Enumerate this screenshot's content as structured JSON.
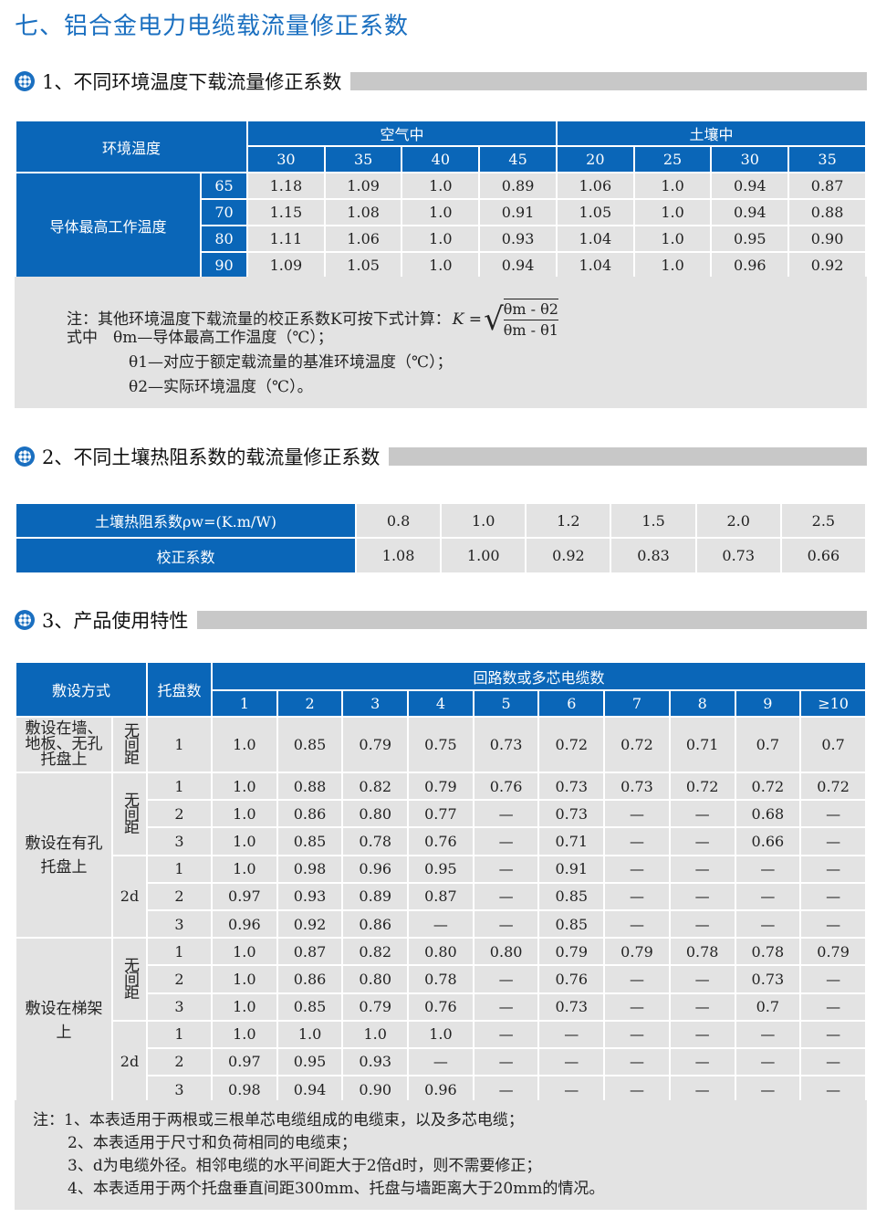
{
  "title": "七、铝合金电力电缆载流量修正系数",
  "colors": {
    "header_blue": "#0a66b8",
    "title_blue": "#1a6fc0",
    "cell_gray": "#e3e3e3"
  },
  "section1": {
    "heading": "1、不同环境温度下载流量修正系数",
    "env_temp": "环境温度",
    "air": "空气中",
    "soil": "土壤中",
    "conductor_max": "导体最高工作温度",
    "air_temps": [
      "30",
      "35",
      "40",
      "45"
    ],
    "soil_temps": [
      "20",
      "25",
      "30",
      "35"
    ],
    "rows": [
      {
        "t": "65",
        "v": [
          "1.18",
          "1.09",
          "1.0",
          "0.89",
          "1.06",
          "1.0",
          "0.94",
          "0.87"
        ]
      },
      {
        "t": "70",
        "v": [
          "1.15",
          "1.08",
          "1.0",
          "0.91",
          "1.05",
          "1.0",
          "0.94",
          "0.88"
        ]
      },
      {
        "t": "80",
        "v": [
          "1.11",
          "1.06",
          "1.0",
          "0.93",
          "1.04",
          "1.0",
          "0.95",
          "0.90"
        ]
      },
      {
        "t": "90",
        "v": [
          "1.09",
          "1.05",
          "1.0",
          "0.94",
          "1.04",
          "1.0",
          "0.96",
          "0.92"
        ]
      }
    ],
    "note": {
      "line1": "注：其他环境温度下载流量的校正系数K可按下式计算：",
      "formula_k": "K =",
      "formula_num": "θm - θ2",
      "formula_den": "θm - θ1",
      "line2": "式中　θm—导体最高工作温度（℃）；",
      "line3": "θ1—对应于额定载流量的基准环境温度（℃）；",
      "line4": "θ2—实际环境温度（℃）。"
    }
  },
  "section2": {
    "heading": "2、不同土壤热阻系数的载流量修正系数",
    "row1_label": "土壤热阻系数ρw=(K.m/W)",
    "row1": [
      "0.8",
      "1.0",
      "1.2",
      "1.5",
      "2.0",
      "2.5"
    ],
    "row2_label": "校正系数",
    "row2": [
      "1.08",
      "1.00",
      "0.92",
      "0.83",
      "0.73",
      "0.66"
    ]
  },
  "section3": {
    "heading": "3、产品使用特性",
    "h_method": "敷设方式",
    "h_trays": "托盘数",
    "h_circuits": "回路数或多芯电缆数",
    "cols": [
      "1",
      "2",
      "3",
      "4",
      "5",
      "6",
      "7",
      "8",
      "9",
      "≥10"
    ],
    "groups": [
      {
        "method": "敷设在墙、地板、无孔托盘上",
        "subs": [
          {
            "spacing": "无间距",
            "rows": [
              {
                "n": "1",
                "v": [
                  "1.0",
                  "0.85",
                  "0.79",
                  "0.75",
                  "0.73",
                  "0.72",
                  "0.72",
                  "0.71",
                  "0.7",
                  "0.7"
                ]
              }
            ]
          }
        ]
      },
      {
        "method": "敷设在有孔托盘上",
        "subs": [
          {
            "spacing": "无间距",
            "rows": [
              {
                "n": "1",
                "v": [
                  "1.0",
                  "0.88",
                  "0.82",
                  "0.79",
                  "0.76",
                  "0.73",
                  "0.73",
                  "0.72",
                  "0.72",
                  "0.72"
                ]
              },
              {
                "n": "2",
                "v": [
                  "1.0",
                  "0.86",
                  "0.80",
                  "0.77",
                  "—",
                  "0.73",
                  "—",
                  "—",
                  "0.68",
                  "—"
                ]
              },
              {
                "n": "3",
                "v": [
                  "1.0",
                  "0.85",
                  "0.78",
                  "0.76",
                  "—",
                  "0.71",
                  "—",
                  "—",
                  "0.66",
                  "—"
                ]
              }
            ]
          },
          {
            "spacing": "2d",
            "rows": [
              {
                "n": "1",
                "v": [
                  "1.0",
                  "0.98",
                  "0.96",
                  "0.95",
                  "—",
                  "0.91",
                  "—",
                  "—",
                  "—",
                  "—"
                ]
              },
              {
                "n": "2",
                "v": [
                  "0.97",
                  "0.93",
                  "0.89",
                  "0.87",
                  "—",
                  "0.85",
                  "—",
                  "—",
                  "—",
                  "—"
                ]
              },
              {
                "n": "3",
                "v": [
                  "0.96",
                  "0.92",
                  "0.86",
                  "—",
                  "—",
                  "0.85",
                  "—",
                  "—",
                  "—",
                  "—"
                ]
              }
            ]
          }
        ]
      },
      {
        "method": "敷设在梯架上",
        "subs": [
          {
            "spacing": "无间距",
            "rows": [
              {
                "n": "1",
                "v": [
                  "1.0",
                  "0.87",
                  "0.82",
                  "0.80",
                  "0.80",
                  "0.79",
                  "0.79",
                  "0.78",
                  "0.78",
                  "0.79"
                ]
              },
              {
                "n": "2",
                "v": [
                  "1.0",
                  "0.86",
                  "0.80",
                  "0.78",
                  "—",
                  "0.76",
                  "—",
                  "—",
                  "0.73",
                  "—"
                ]
              },
              {
                "n": "3",
                "v": [
                  "1.0",
                  "0.85",
                  "0.79",
                  "0.76",
                  "—",
                  "0.73",
                  "—",
                  "—",
                  "0.7",
                  "—"
                ]
              }
            ]
          },
          {
            "spacing": "2d",
            "rows": [
              {
                "n": "1",
                "v": [
                  "1.0",
                  "1.0",
                  "1.0",
                  "1.0",
                  "—",
                  "—",
                  "—",
                  "—",
                  "—",
                  "—"
                ]
              },
              {
                "n": "2",
                "v": [
                  "0.97",
                  "0.95",
                  "0.93",
                  "—",
                  "—",
                  "—",
                  "—",
                  "—",
                  "—",
                  "—"
                ]
              },
              {
                "n": "3",
                "v": [
                  "0.98",
                  "0.94",
                  "0.90",
                  "0.96",
                  "—",
                  "—",
                  "—",
                  "—",
                  "—",
                  "—"
                ]
              }
            ]
          }
        ]
      }
    ],
    "notes": [
      "注：1、本表适用于两根或三根单芯电缆组成的电缆束，以及多芯电缆；",
      "2、本表适用于尺寸和负荷相同的电缆束；",
      "3、d为电缆外径。相邻电缆的水平间距大于2倍d时，则不需要修正；",
      "4、本表适用于两个托盘垂直间距300mm、托盘与墙距离大于20mm的情况。"
    ]
  }
}
